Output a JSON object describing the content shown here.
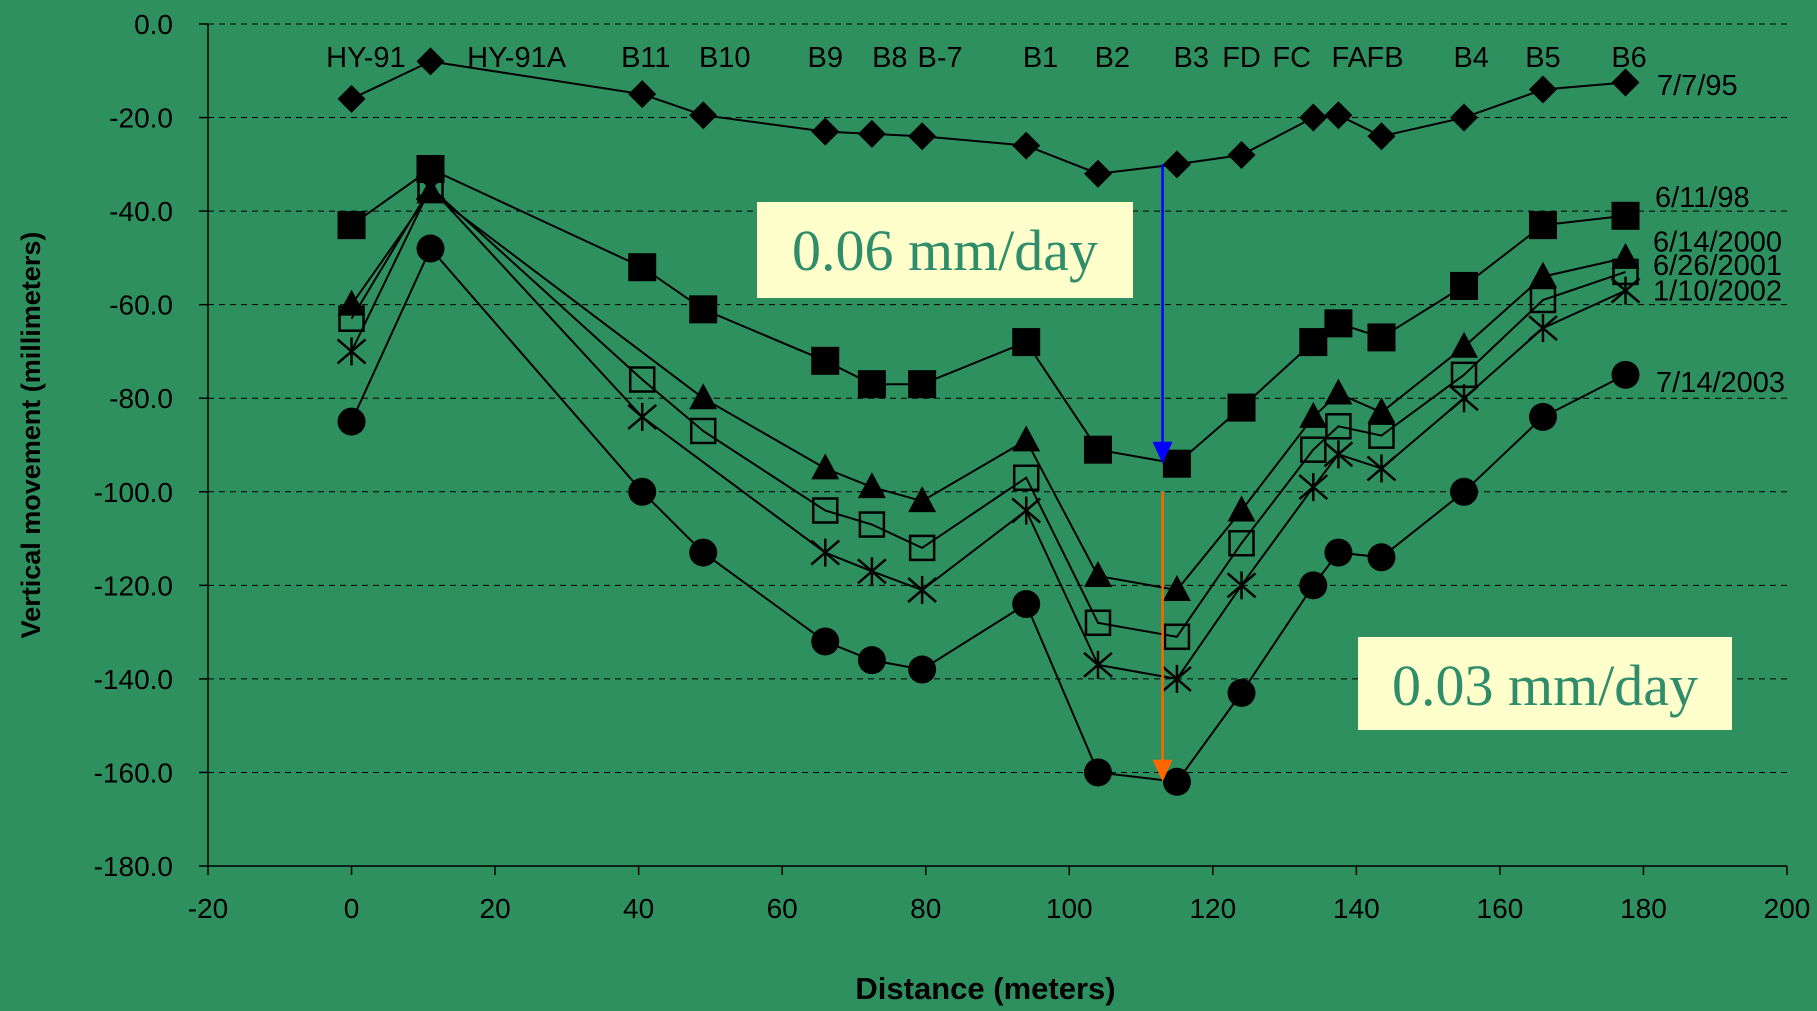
{
  "chart_data": {
    "type": "line",
    "xlabel": "Distance (meters)",
    "ylabel": "Vertical movement (millimeters)",
    "xlim": [
      -20,
      200
    ],
    "ylim": [
      -180,
      0
    ],
    "xticks": [
      -20,
      0,
      20,
      40,
      60,
      80,
      100,
      120,
      140,
      160,
      180,
      200
    ],
    "yticks": [
      0,
      -20,
      -40,
      -60,
      -80,
      -100,
      -120,
      -140,
      -160,
      -180
    ],
    "xtick_labels": [
      "-20",
      "0",
      "20",
      "40",
      "60",
      "80",
      "100",
      "120",
      "140",
      "160",
      "180",
      "200"
    ],
    "ytick_labels": [
      "0.0",
      "-20.0",
      "-40.0",
      "-60.0",
      "-80.0",
      "-100.0",
      "-120.0",
      "-140.0",
      "-160.0",
      "-180.0"
    ],
    "grid": "horizontal dashed",
    "background_color": "#2f905f",
    "station_labels": [
      {
        "text": "HY-91",
        "x": 2
      },
      {
        "text": "HY-91A",
        "x": 23
      },
      {
        "text": "B11",
        "x": 41
      },
      {
        "text": "B10",
        "x": 52
      },
      {
        "text": "B9",
        "x": 66
      },
      {
        "text": "B8",
        "x": 75
      },
      {
        "text": "B-7",
        "x": 82
      },
      {
        "text": "B1",
        "x": 96
      },
      {
        "text": "B2",
        "x": 106
      },
      {
        "text": "B3",
        "x": 117
      },
      {
        "text": "FD",
        "x": 124
      },
      {
        "text": "FC",
        "x": 131
      },
      {
        "text": "FA",
        "x": 139
      },
      {
        "text": "FB",
        "x": 144
      },
      {
        "text": "B4",
        "x": 156
      },
      {
        "text": "B5",
        "x": 166
      },
      {
        "text": "B6",
        "x": 178
      }
    ],
    "x": [
      0,
      11,
      40.5,
      49,
      66,
      72.5,
      79.5,
      94,
      104,
      115,
      124,
      134,
      137.5,
      143.5,
      155,
      166,
      177.5
    ],
    "series": [
      {
        "name": "7/7/95",
        "marker": "diamond",
        "values": [
          -16,
          -8,
          -15,
          -19.5,
          -23,
          -23.5,
          -24,
          -26,
          -32,
          -30,
          -28,
          -20,
          -19.5,
          -24,
          -20,
          -14,
          -12.5
        ]
      },
      {
        "name": "6/11/98",
        "marker": "square",
        "values": [
          -43,
          -31,
          -52,
          -61,
          -72,
          -77,
          -77,
          -68,
          -91,
          -94,
          -82,
          -68,
          -64,
          -67,
          -56,
          -43,
          -41
        ]
      },
      {
        "name": "6/14/2000",
        "marker": "triangle",
        "values": [
          -60,
          -36,
          null,
          -80,
          -95,
          -99,
          -102,
          -89,
          -118,
          -121,
          -104,
          -84,
          -79,
          -83,
          -69,
          -54,
          -50
        ]
      },
      {
        "name": "6/26/2001",
        "marker": "open-square",
        "values": [
          -63,
          -35,
          -76,
          -87,
          -104,
          -107,
          -112,
          -97,
          -128,
          -131,
          -111,
          -91,
          -86,
          -88,
          -75,
          -59,
          -53
        ]
      },
      {
        "name": "1/10/2002",
        "marker": "asterisk",
        "values": [
          -70,
          -35,
          -84,
          null,
          -113,
          -117,
          -121,
          -104,
          -137,
          -140,
          -120,
          -99,
          -92,
          -95,
          -80,
          -65,
          -57
        ]
      },
      {
        "name": "7/14/2003",
        "marker": "circle",
        "values": [
          -85,
          -48,
          -100,
          -113,
          -132,
          -136,
          -138,
          -124,
          -160,
          -162,
          -143,
          -120,
          -113,
          -114,
          -100,
          -84,
          -75
        ]
      }
    ],
    "annotations": [
      {
        "text": "0.06 mm/day",
        "arrow_from": {
          "x": 113,
          "y": -30
        },
        "arrow_to": {
          "x": 113,
          "y": -94
        },
        "arrow_color": "#0000ff"
      },
      {
        "text": "0.03 mm/day",
        "arrow_from": {
          "x": 113,
          "y": -100
        },
        "arrow_to": {
          "x": 113,
          "y": -162
        },
        "arrow_color": "#ff6600"
      }
    ],
    "colors": {
      "plot_background": "#2f905f",
      "text": "#000000",
      "grid": "#000000",
      "label_box": "#ffffcc",
      "label_text": "#2f8d6b"
    }
  }
}
